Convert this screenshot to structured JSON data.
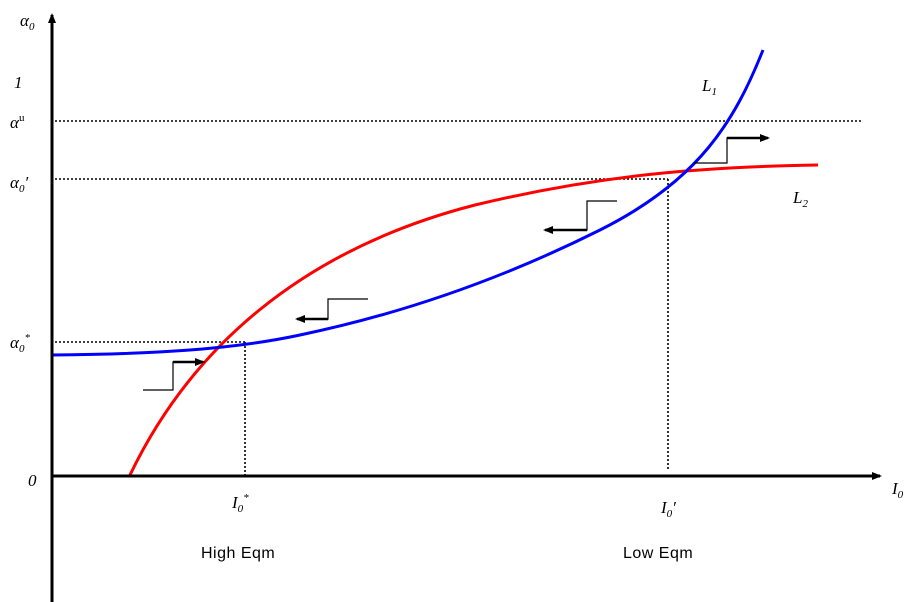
{
  "chart_data": {
    "type": "line",
    "y_axis_label": "α₀",
    "x_axis_label": "I₀",
    "y_tick_labels": [
      "1",
      "αᵘ",
      "α₀′",
      "α₀*",
      "0"
    ],
    "x_tick_labels": [
      "I₀*",
      "I₀′"
    ],
    "curve_labels": [
      "L₁",
      "L₂"
    ],
    "equilibrium_labels": [
      "High Eqm",
      "Low Eqm"
    ],
    "colors": {
      "L1": "#0000ff",
      "L2": "#ff0000",
      "axes": "#000000"
    }
  },
  "labels": {
    "origin": "0",
    "one": "1",
    "alpha_base": "α",
    "alpha_u_sup": "u",
    "sub0": "0",
    "prime": "′",
    "star": "*",
    "I_base": "I",
    "L_base": "L",
    "sub1": "1",
    "sub2": "2",
    "high_eqm": "High Eqm",
    "low_eqm": "Low Eqm"
  }
}
